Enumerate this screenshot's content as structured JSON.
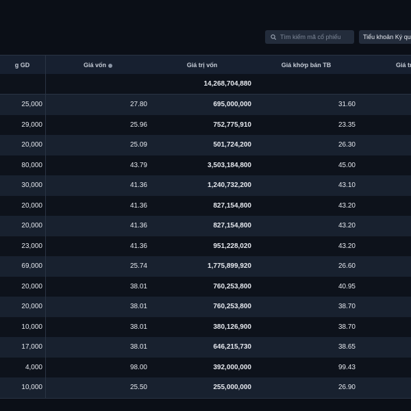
{
  "toolbar": {
    "search_placeholder": "Tìm kiếm mã cổ phiếu",
    "account_button": "Tiểu khoản Ký quỹ"
  },
  "table": {
    "header": [
      "g GD",
      "Giá vốn",
      "Giá trị vốn",
      "Giá khớp bán TB",
      "Giá tr"
    ],
    "total": "14,268,704,880",
    "rows": [
      [
        "25,000",
        "27.80",
        "695,000,000",
        "31.60"
      ],
      [
        "29,000",
        "25.96",
        "752,775,910",
        "23.35"
      ],
      [
        "20,000",
        "25.09",
        "501,724,200",
        "26.30"
      ],
      [
        "80,000",
        "43.79",
        "3,503,184,800",
        "45.00"
      ],
      [
        "30,000",
        "41.36",
        "1,240,732,200",
        "43.10"
      ],
      [
        "20,000",
        "41.36",
        "827,154,800",
        "43.20"
      ],
      [
        "20,000",
        "41.36",
        "827,154,800",
        "43.20"
      ],
      [
        "23,000",
        "41.36",
        "951,228,020",
        "43.20"
      ],
      [
        "69,000",
        "25.74",
        "1,775,899,920",
        "26.60"
      ],
      [
        "20,000",
        "38.01",
        "760,253,800",
        "40.95"
      ],
      [
        "20,000",
        "38.01",
        "760,253,800",
        "38.70"
      ],
      [
        "10,000",
        "38.01",
        "380,126,900",
        "38.70"
      ],
      [
        "17,000",
        "38.01",
        "646,215,730",
        "38.65"
      ],
      [
        "4,000",
        "98.00",
        "392,000,000",
        "99.43"
      ],
      [
        "10,000",
        "25.50",
        "255,000,000",
        "26.90"
      ]
    ]
  }
}
